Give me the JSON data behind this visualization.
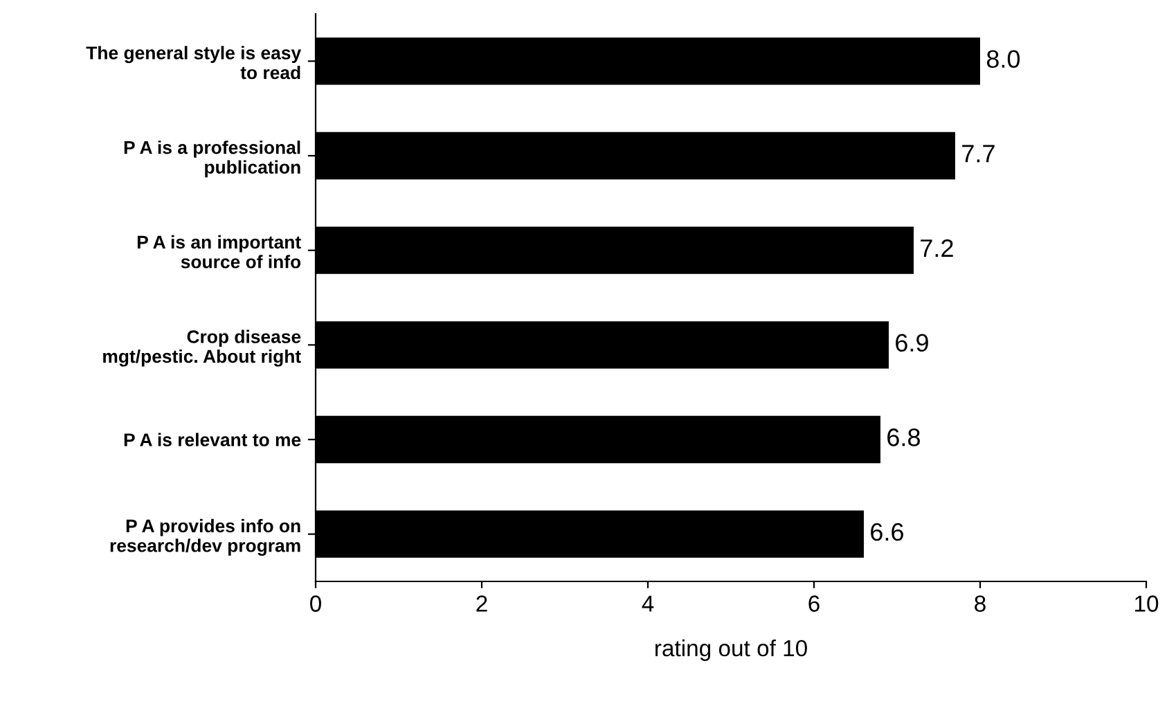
{
  "chart_data": {
    "type": "bar",
    "orientation": "horizontal",
    "xlabel": "rating out of 10",
    "categories": [
      "The general style is easy\nto read",
      "P A is a professional\npublication",
      "P A is an important\nsource of info",
      "Crop disease\nmgt/pestic. About right",
      "P A is relevant to me",
      "P A provides info on\nresearch/dev program"
    ],
    "values": [
      8.0,
      7.7,
      7.2,
      6.9,
      6.8,
      6.6
    ],
    "value_labels": [
      "8.0",
      "7.7",
      "7.2",
      "6.9",
      "6.8",
      "6.6"
    ],
    "color": "#000000",
    "xlim": [
      0,
      10
    ],
    "xticks": [
      0,
      2,
      4,
      6,
      8,
      10
    ],
    "grid": false,
    "legend": false
  }
}
